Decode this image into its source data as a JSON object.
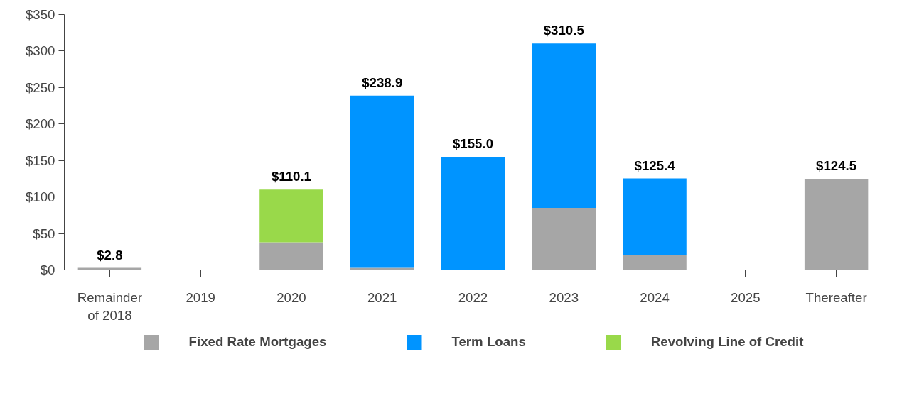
{
  "chart_data": {
    "type": "bar",
    "stacked": true,
    "categories": [
      "Remainder\nof 2018",
      "2019",
      "2020",
      "2021",
      "2022",
      "2023",
      "2024",
      "2025",
      "Thereafter"
    ],
    "series": [
      {
        "name": "Fixed Rate Mortgages",
        "color": "#a6a6a6",
        "values": [
          2.8,
          null,
          38,
          3,
          null,
          85,
          20,
          null,
          124.5
        ]
      },
      {
        "name": "Term Loans",
        "color": "#0094ff",
        "values": [
          null,
          null,
          null,
          235.9,
          155.0,
          225.5,
          105.4,
          null,
          null
        ]
      },
      {
        "name": "Revolving Line of Credit",
        "color": "#99d94a",
        "values": [
          null,
          null,
          72.1,
          null,
          null,
          null,
          null,
          null,
          null
        ]
      }
    ],
    "totals": [
      "$2.8",
      null,
      "$110.1",
      "$238.9",
      "$155.0",
      "$310.5",
      "$125.4",
      null,
      "$124.5"
    ],
    "ylim": [
      0,
      350
    ],
    "yticks": [
      {
        "value": 0,
        "label": "$0"
      },
      {
        "value": 50,
        "label": "$50"
      },
      {
        "value": 100,
        "label": "$100"
      },
      {
        "value": 150,
        "label": "$150"
      },
      {
        "value": 200,
        "label": "$200"
      },
      {
        "value": 250,
        "label": "$250"
      },
      {
        "value": 300,
        "label": "$300"
      },
      {
        "value": 350,
        "label": "$350"
      }
    ],
    "grid": false,
    "legend": "bottom"
  }
}
